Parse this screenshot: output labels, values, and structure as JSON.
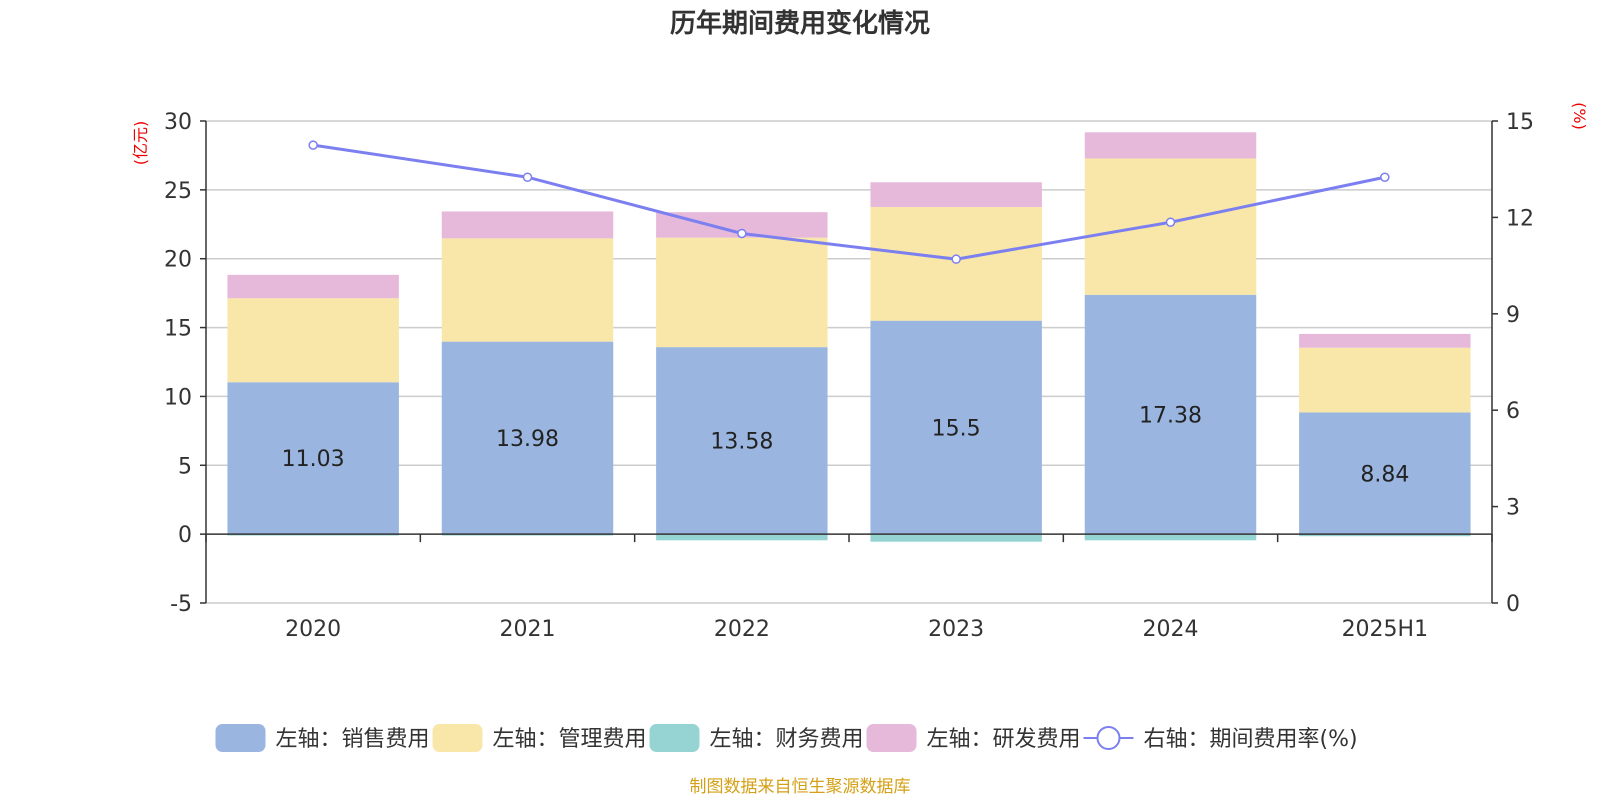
{
  "chart_data": {
    "type": "bar",
    "title": "历年期间费用变化情况",
    "categories": [
      "2020",
      "2021",
      "2022",
      "2023",
      "2024",
      "2025H1"
    ],
    "left_axis": {
      "unit_label": "(亿元)",
      "range": [
        -5,
        30
      ],
      "ticks": [
        "-5",
        "0",
        "5",
        "10",
        "15",
        "20",
        "25",
        "30"
      ]
    },
    "right_axis": {
      "unit_label": "(%)",
      "range": [
        0,
        15
      ],
      "ticks": [
        "0",
        "3",
        "6",
        "9",
        "12",
        "15"
      ]
    },
    "series": [
      {
        "name": "左轴：销售费用",
        "kind": "bar",
        "axis": "left",
        "color": "#9ab6e0",
        "values": [
          11.03,
          13.98,
          13.58,
          15.5,
          17.38,
          8.84
        ],
        "data_labels": [
          "11.03",
          "13.98",
          "13.58",
          "15.5",
          "17.38",
          "8.84"
        ]
      },
      {
        "name": "左轴：管理费用",
        "kind": "bar",
        "axis": "left",
        "color": "#f8e7a8",
        "values": [
          6.1,
          7.5,
          7.95,
          8.25,
          9.9,
          4.7
        ]
      },
      {
        "name": "左轴：财务费用",
        "kind": "bar",
        "axis": "left",
        "color": "#96d3d3",
        "values": [
          -0.1,
          -0.1,
          -0.45,
          -0.55,
          -0.45,
          -0.15
        ]
      },
      {
        "name": "左轴：研发费用",
        "kind": "bar",
        "axis": "left",
        "color": "#e6b9da",
        "values": [
          1.7,
          1.95,
          1.85,
          1.8,
          1.9,
          1.0
        ]
      },
      {
        "name": "右轴：期间费用率(%)",
        "kind": "line",
        "axis": "right",
        "color": "#7b7fef",
        "values": [
          14.25,
          13.25,
          11.5,
          10.7,
          11.85,
          13.25
        ]
      }
    ],
    "grid": true,
    "legend_position": "bottom"
  },
  "source": "制图数据来自恒生聚源数据库"
}
